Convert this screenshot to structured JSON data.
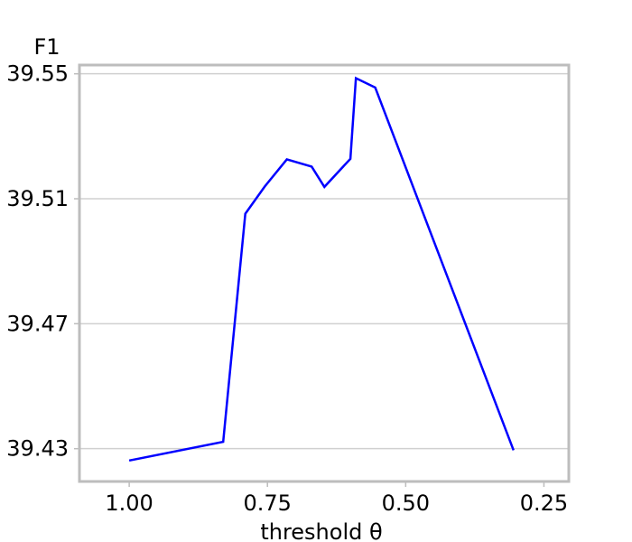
{
  "chart_data": {
    "type": "line",
    "title": "",
    "xlabel": "threshold θ",
    "ylabel": "F1",
    "x_inverted": true,
    "xlim": [
      1.09,
      0.205
    ],
    "ylim": [
      39.4195,
      39.5528
    ],
    "grid": {
      "x": false,
      "y": true
    },
    "x_ticks": [
      1.0,
      0.75,
      0.5,
      0.25
    ],
    "x_tick_labels": [
      "1.00",
      "0.75",
      "0.50",
      "0.25"
    ],
    "y_ticks": [
      39.43,
      39.47,
      39.51,
      39.55
    ],
    "y_tick_labels": [
      "39.43",
      "39.47",
      "39.51",
      "39.55"
    ],
    "series": [
      {
        "color": "#0000ff",
        "x": [
          1.0,
          0.83,
          0.79,
          0.755,
          0.715,
          0.67,
          0.647,
          0.6,
          0.59,
          0.555
        ],
        "y": [
          39.4262,
          39.4322,
          39.5052,
          39.5139,
          39.5226,
          39.5203,
          39.5138,
          39.5228,
          39.5486,
          39.5456
        ],
        "x_cont": [
          0.305
        ],
        "y_cont": [
          39.4295
        ]
      }
    ]
  }
}
